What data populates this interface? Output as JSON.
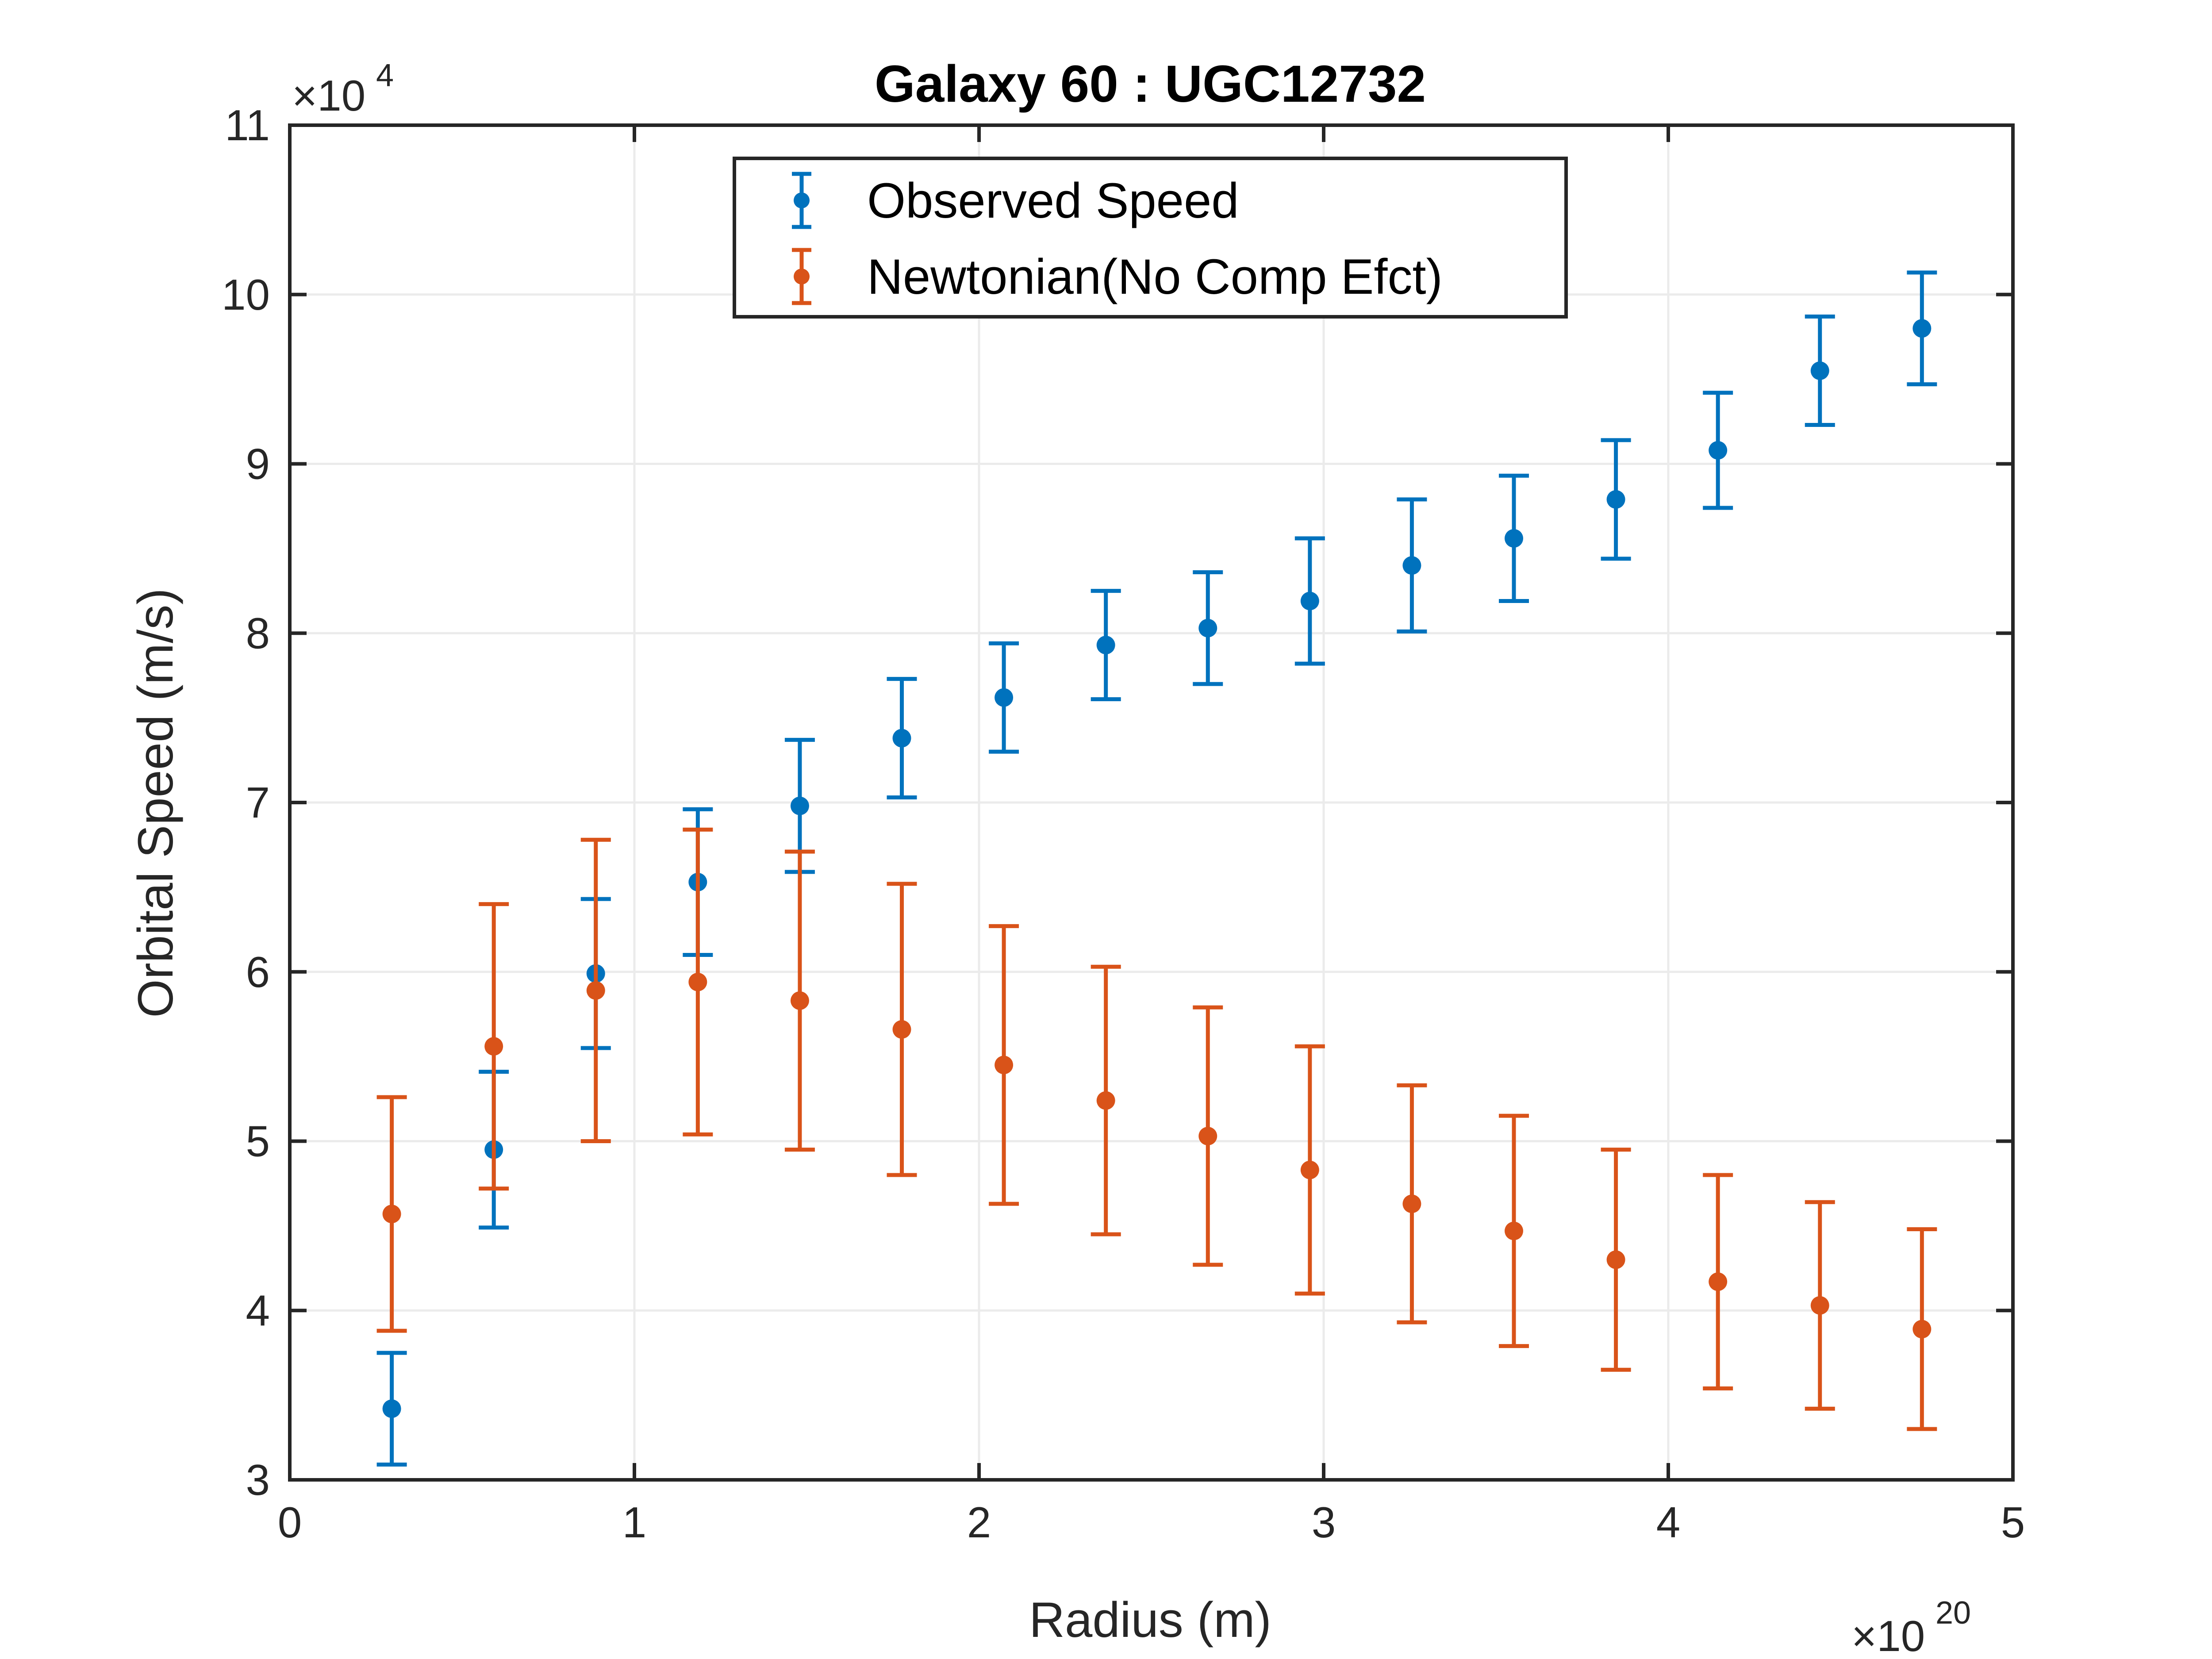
{
  "chart_data": {
    "type": "scatter",
    "title": "Galaxy 60 : UGC12732",
    "xlabel": "Radius (m)",
    "ylabel": "Orbital Speed (m/s)",
    "x_multiplier": {
      "base": "×10",
      "exponent": "20"
    },
    "y_multiplier": {
      "base": "×10",
      "exponent": "4"
    },
    "xlim": [
      0,
      5
    ],
    "ylim": [
      3,
      11
    ],
    "xticks": [
      0,
      1,
      2,
      3,
      4,
      5
    ],
    "yticks": [
      3,
      4,
      5,
      6,
      7,
      8,
      9,
      10,
      11
    ],
    "grid": true,
    "legend_position": "top-center",
    "series": [
      {
        "name": "Observed Speed",
        "color": "#0072BD",
        "marker": "filled-circle-with-errorbar",
        "x": [
          0.296,
          0.592,
          0.888,
          1.184,
          1.48,
          1.776,
          2.072,
          2.368,
          2.664,
          2.96,
          3.256,
          3.552,
          3.848,
          4.144,
          4.44,
          4.736
        ],
        "y": [
          3.42,
          4.95,
          5.99,
          6.53,
          6.98,
          7.38,
          7.62,
          7.93,
          8.03,
          8.19,
          8.4,
          8.56,
          8.79,
          9.08,
          9.55,
          9.8
        ],
        "err": [
          0.33,
          0.46,
          0.44,
          0.43,
          0.39,
          0.35,
          0.32,
          0.32,
          0.33,
          0.37,
          0.39,
          0.37,
          0.35,
          0.34,
          0.32,
          0.33
        ]
      },
      {
        "name": "Newtonian(No Comp Efct)",
        "color": "#D95319",
        "marker": "filled-circle-with-errorbar",
        "x": [
          0.296,
          0.592,
          0.888,
          1.184,
          1.48,
          1.776,
          2.072,
          2.368,
          2.664,
          2.96,
          3.256,
          3.552,
          3.848,
          4.144,
          4.44,
          4.736
        ],
        "y": [
          4.57,
          5.56,
          5.89,
          5.94,
          5.83,
          5.66,
          5.45,
          5.24,
          5.03,
          4.83,
          4.63,
          4.47,
          4.3,
          4.17,
          4.03,
          3.89
        ],
        "err": [
          0.69,
          0.84,
          0.89,
          0.9,
          0.88,
          0.86,
          0.82,
          0.79,
          0.76,
          0.73,
          0.7,
          0.68,
          0.65,
          0.63,
          0.61,
          0.59
        ]
      }
    ]
  }
}
